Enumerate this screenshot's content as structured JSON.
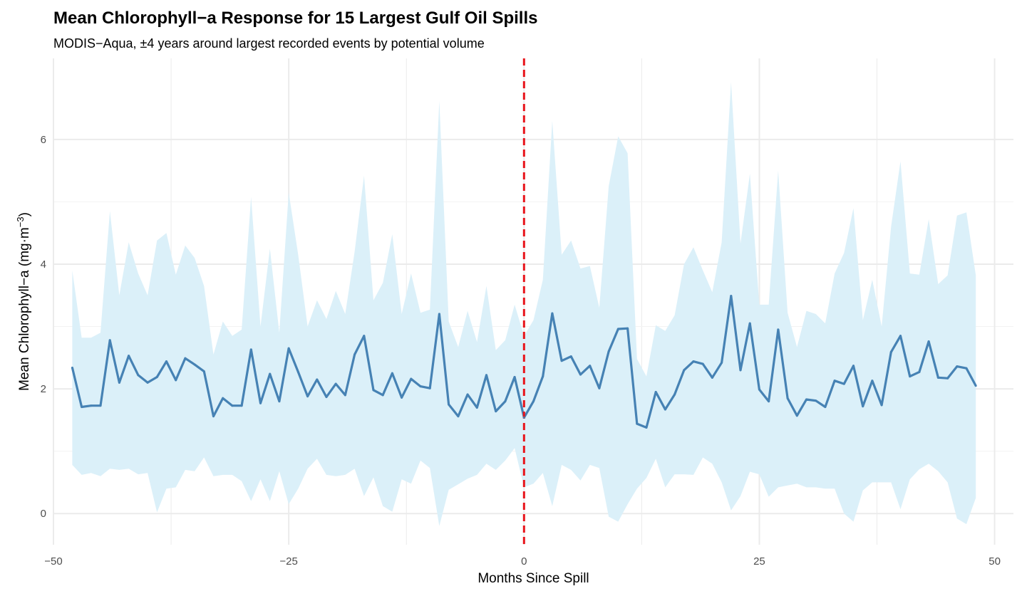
{
  "chart_data": {
    "type": "line",
    "title": "Mean Chlorophyll−a Response for 15 Largest Gulf Oil Spills",
    "subtitle": "MODIS−Aqua, ±4 years around largest recorded events by potential volume",
    "xlabel": "Months Since Spill",
    "ylabel_main": "Mean Chlorophyll−a (mg·m",
    "ylabel_sup": "−3",
    "ylabel_close": ")",
    "xlim": [
      -50,
      52
    ],
    "ylim": [
      -0.5,
      7.3
    ],
    "x_ticks": [
      -50,
      -25,
      0,
      25,
      50
    ],
    "x_tick_labels": [
      "−50",
      "−25",
      "0",
      "25",
      "50"
    ],
    "y_ticks": [
      0,
      2,
      4,
      6
    ],
    "y_tick_labels": [
      "0",
      "2",
      "4",
      "6"
    ],
    "grid": true,
    "spill_marker_x": 0,
    "colors": {
      "line": "#4682b4",
      "band": "#dbf0f9",
      "marker": "#e8141b",
      "grid": "#ebebeb"
    },
    "x": [
      -48,
      -47,
      -46,
      -45,
      -44,
      -43,
      -42,
      -41,
      -40,
      -39,
      -38,
      -37,
      -36,
      -35,
      -34,
      -33,
      -32,
      -31,
      -30,
      -29,
      -28,
      -27,
      -26,
      -25,
      -24,
      -23,
      -22,
      -21,
      -20,
      -19,
      -18,
      -17,
      -16,
      -15,
      -14,
      -13,
      -12,
      -11,
      -10,
      -9,
      -8,
      -7,
      -6,
      -5,
      -4,
      -3,
      -2,
      -1,
      0,
      1,
      2,
      3,
      4,
      5,
      6,
      7,
      8,
      9,
      10,
      11,
      12,
      13,
      14,
      15,
      16,
      17,
      18,
      19,
      20,
      21,
      22,
      23,
      24,
      25,
      26,
      27,
      28,
      29,
      30,
      31,
      32,
      33,
      34,
      35,
      36,
      37,
      38,
      39,
      40,
      41,
      42,
      43,
      44,
      45,
      46,
      47,
      48
    ],
    "series": [
      {
        "values": [
          2.34,
          1.71,
          1.73,
          1.73,
          2.78,
          2.1,
          2.53,
          2.22,
          2.1,
          2.19,
          2.44,
          2.14,
          2.49,
          2.39,
          2.28,
          1.56,
          1.85,
          1.73,
          1.73,
          2.63,
          1.77,
          2.24,
          1.8,
          2.65,
          2.27,
          1.88,
          2.15,
          1.87,
          2.08,
          1.9,
          2.55,
          2.85,
          1.98,
          1.9,
          2.25,
          1.86,
          2.16,
          2.04,
          2.01,
          3.2,
          1.75,
          1.56,
          1.91,
          1.7,
          2.22,
          1.64,
          1.8,
          2.19,
          1.54,
          1.8,
          2.2,
          3.21,
          2.45,
          2.52,
          2.23,
          2.37,
          2.01,
          2.6,
          2.96,
          2.97,
          1.44,
          1.38,
          1.95,
          1.67,
          1.91,
          2.3,
          2.44,
          2.4,
          2.18,
          2.42,
          3.49,
          2.3,
          3.05,
          1.99,
          1.8,
          2.95,
          1.85,
          1.57,
          1.83,
          1.81,
          1.71,
          2.13,
          2.08,
          2.37,
          1.72,
          2.13,
          1.74,
          2.59,
          2.85,
          2.2,
          2.27,
          2.76,
          2.18,
          2.17,
          2.36,
          2.33,
          2.05
        ]
      }
    ],
    "band_upper": [
      3.9,
      2.82,
      2.82,
      2.9,
      4.85,
      3.5,
      4.35,
      3.85,
      3.5,
      4.38,
      4.5,
      3.83,
      4.3,
      4.1,
      3.65,
      2.55,
      3.08,
      2.85,
      2.95,
      5.08,
      3.0,
      4.25,
      2.9,
      5.15,
      4.15,
      3.0,
      3.42,
      3.12,
      3.57,
      3.2,
      4.2,
      5.42,
      3.42,
      3.7,
      4.48,
      3.2,
      3.85,
      3.22,
      3.27,
      6.62,
      3.08,
      2.67,
      3.25,
      2.75,
      3.65,
      2.62,
      2.78,
      3.35,
      2.85,
      3.1,
      3.75,
      6.3,
      4.15,
      4.38,
      3.93,
      3.97,
      3.3,
      5.25,
      6.05,
      5.78,
      2.48,
      2.2,
      3.02,
      2.93,
      3.18,
      4.0,
      4.27,
      3.9,
      3.55,
      4.35,
      6.92,
      4.33,
      5.45,
      3.35,
      3.35,
      5.5,
      3.22,
      2.67,
      3.25,
      3.2,
      3.05,
      3.85,
      4.18,
      4.9,
      3.1,
      3.75,
      3.0,
      4.6,
      5.65,
      3.85,
      3.83,
      4.72,
      3.68,
      3.82,
      4.78,
      4.83,
      3.82
    ],
    "band_lower": [
      0.78,
      0.62,
      0.65,
      0.6,
      0.72,
      0.7,
      0.72,
      0.63,
      0.65,
      0.02,
      0.4,
      0.42,
      0.7,
      0.68,
      0.9,
      0.6,
      0.62,
      0.62,
      0.52,
      0.2,
      0.55,
      0.2,
      0.68,
      0.15,
      0.4,
      0.72,
      0.88,
      0.62,
      0.6,
      0.62,
      0.72,
      0.28,
      0.58,
      0.12,
      0.03,
      0.55,
      0.48,
      0.85,
      0.73,
      -0.2,
      0.38,
      0.47,
      0.56,
      0.62,
      0.8,
      0.7,
      0.85,
      1.05,
      0.42,
      0.48,
      0.65,
      0.12,
      0.78,
      0.7,
      0.53,
      0.78,
      0.73,
      -0.05,
      -0.13,
      0.15,
      0.4,
      0.57,
      0.88,
      0.42,
      0.63,
      0.63,
      0.62,
      0.9,
      0.8,
      0.5,
      0.05,
      0.28,
      0.67,
      0.63,
      0.27,
      0.42,
      0.45,
      0.48,
      0.42,
      0.42,
      0.4,
      0.4,
      0.0,
      -0.13,
      0.37,
      0.5,
      0.5,
      0.5,
      0.07,
      0.55,
      0.71,
      0.8,
      0.68,
      0.5,
      -0.08,
      -0.17,
      0.25
    ]
  }
}
